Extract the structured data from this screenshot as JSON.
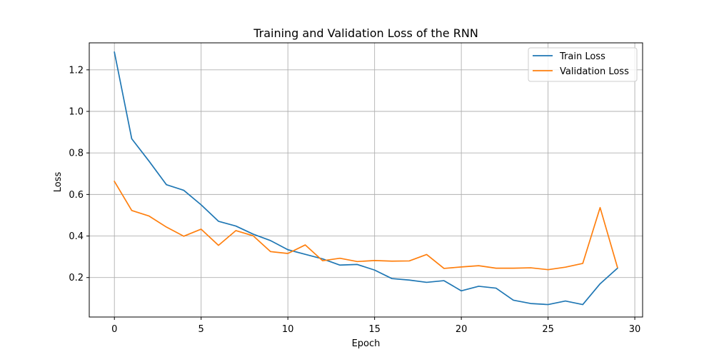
{
  "chart_data": {
    "type": "line",
    "title": "Training and Validation Loss of the RNN",
    "xlabel": "Epoch",
    "ylabel": "Loss",
    "xlim": [
      -1.45,
      30.45
    ],
    "ylim": [
      0.01,
      1.33
    ],
    "xticks": [
      0,
      5,
      10,
      15,
      20,
      25,
      30
    ],
    "yticks": [
      0.2,
      0.4,
      0.6,
      0.8,
      1.0,
      1.2
    ],
    "xtick_labels": [
      "0",
      "5",
      "10",
      "15",
      "20",
      "25",
      "30"
    ],
    "ytick_labels": [
      "0.2",
      "0.4",
      "0.6",
      "0.8",
      "1.0",
      "1.2"
    ],
    "grid": true,
    "legend_position": "top-right",
    "x": [
      0,
      1,
      2,
      3,
      4,
      5,
      6,
      7,
      8,
      9,
      10,
      11,
      12,
      13,
      14,
      15,
      16,
      17,
      18,
      19,
      20,
      21,
      22,
      23,
      24,
      25,
      26,
      27,
      28,
      29
    ],
    "series": [
      {
        "name": "Train Loss",
        "color": "#1f77b4",
        "values": [
          1.285,
          0.868,
          0.76,
          0.647,
          0.62,
          0.55,
          0.471,
          0.448,
          0.409,
          0.378,
          0.334,
          0.312,
          0.29,
          0.26,
          0.263,
          0.236,
          0.195,
          0.188,
          0.177,
          0.185,
          0.136,
          0.158,
          0.149,
          0.091,
          0.075,
          0.07,
          0.087,
          0.07,
          0.17,
          0.245
        ]
      },
      {
        "name": "Validation Loss",
        "color": "#ff7f0e",
        "values": [
          0.663,
          0.523,
          0.496,
          0.443,
          0.399,
          0.433,
          0.355,
          0.426,
          0.401,
          0.325,
          0.316,
          0.357,
          0.281,
          0.293,
          0.277,
          0.282,
          0.279,
          0.28,
          0.311,
          0.244,
          0.251,
          0.257,
          0.245,
          0.245,
          0.247,
          0.238,
          0.25,
          0.268,
          0.537,
          0.249
        ]
      }
    ]
  }
}
